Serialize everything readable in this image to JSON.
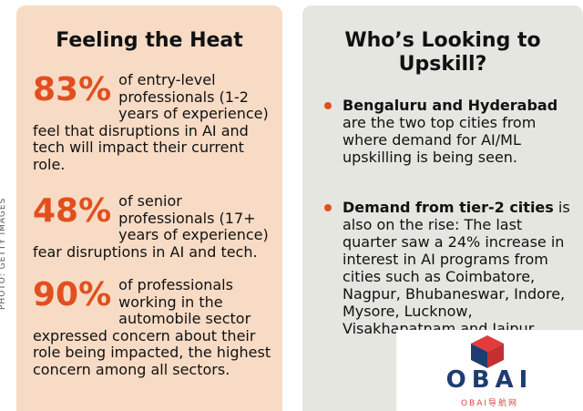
{
  "side_credit": "PHOTO: GETTY IMAGES",
  "left": {
    "title": "Feeling the Heat",
    "stats": [
      {
        "value": "83%",
        "text": "of entry-level professionals (1-2 years of experience) feel that disruptions in AI and tech will impact their current role."
      },
      {
        "value": "48%",
        "text": "of senior professionals (17+ years of experience) fear disruptions in AI and tech."
      },
      {
        "value": "90%",
        "text": "of professionals working in the automobile sector expressed concern about their role being impacted, the highest concern among all sectors."
      }
    ]
  },
  "right": {
    "title": "Who’s Looking to Upskill?",
    "bullets": [
      {
        "bold": "Bengaluru and Hyderabad",
        "text": " are the two top cities from where demand for AI/ML upskilling is being seen."
      },
      {
        "bold": "Demand from tier-2 cities",
        "text": " is also on the rise: The last quarter saw a 24% increase in interest in AI programs from cities such as Coimbatore, Nagpur, Bhubaneswar, Indore, Mysore, Lucknow, Visakhapatnam and Jaipur."
      }
    ]
  },
  "watermark": {
    "name": "OBAI",
    "sub": "OBAI导航网"
  },
  "colors": {
    "accent": "#e24f1f",
    "left_bg": "#f7dbc5",
    "right_bg": "#e5e6e0"
  }
}
